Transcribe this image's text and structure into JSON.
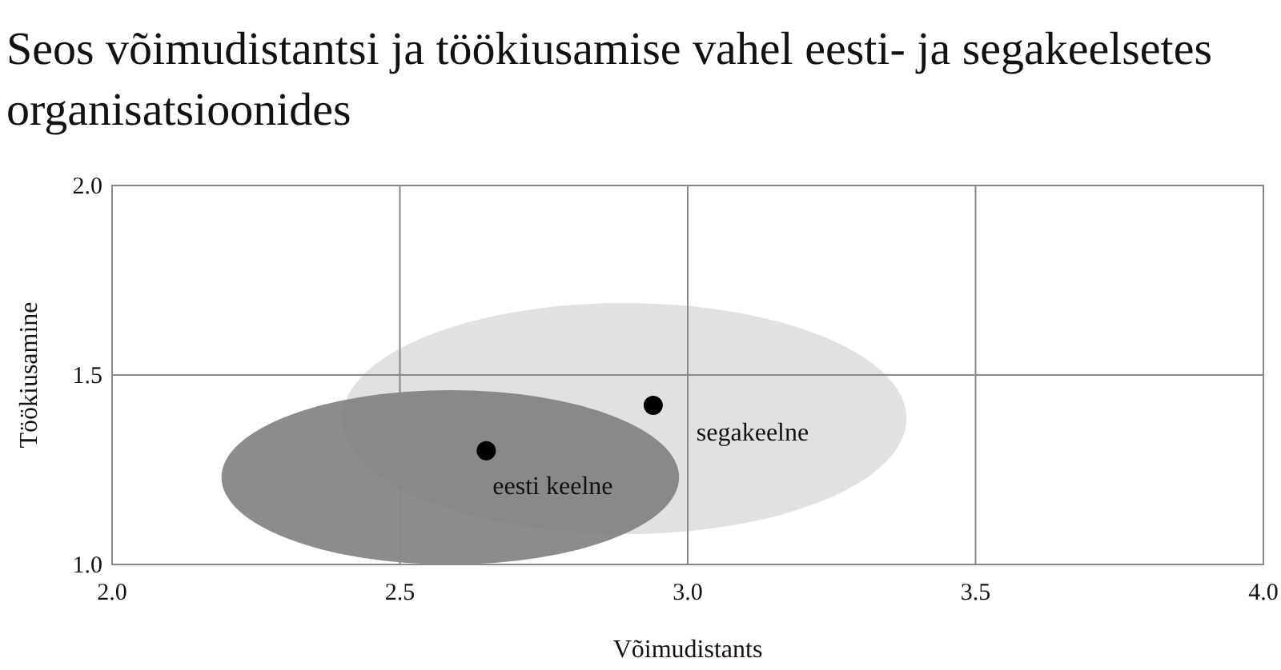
{
  "chart_data": {
    "type": "scatter",
    "title": "Seos võimudistantsi ja töökiusamise vahel  eesti- ja segakeelsetes organisatsioonides",
    "xlabel": "Võimudistants",
    "ylabel": "Töökiusamine",
    "xlim": [
      2.0,
      4.0
    ],
    "xticks": [
      {
        "value": 2,
        "label": "2.0"
      },
      {
        "value": 2.5,
        "label": "2.5"
      },
      {
        "value": 3,
        "label": "3.0"
      },
      {
        "value": 3.5,
        "label": "3.5"
      },
      {
        "value": 4,
        "label": "4.0"
      }
    ],
    "ylim": [
      1.0,
      2.0
    ],
    "yticks": [
      {
        "value": 1,
        "label": "1.0"
      },
      {
        "value": 1.5,
        "label": "1.5"
      },
      {
        "value": 2,
        "label": "2.0"
      }
    ],
    "grid": true,
    "marker": "circle",
    "series": [
      {
        "name": "eesti keelne",
        "color": "#000000",
        "x": [
          2.65
        ],
        "values": [
          1.3
        ]
      },
      {
        "name": "segakeelne",
        "color": "#000000",
        "x": [
          2.94
        ],
        "values": [
          1.42
        ]
      }
    ]
  }
}
